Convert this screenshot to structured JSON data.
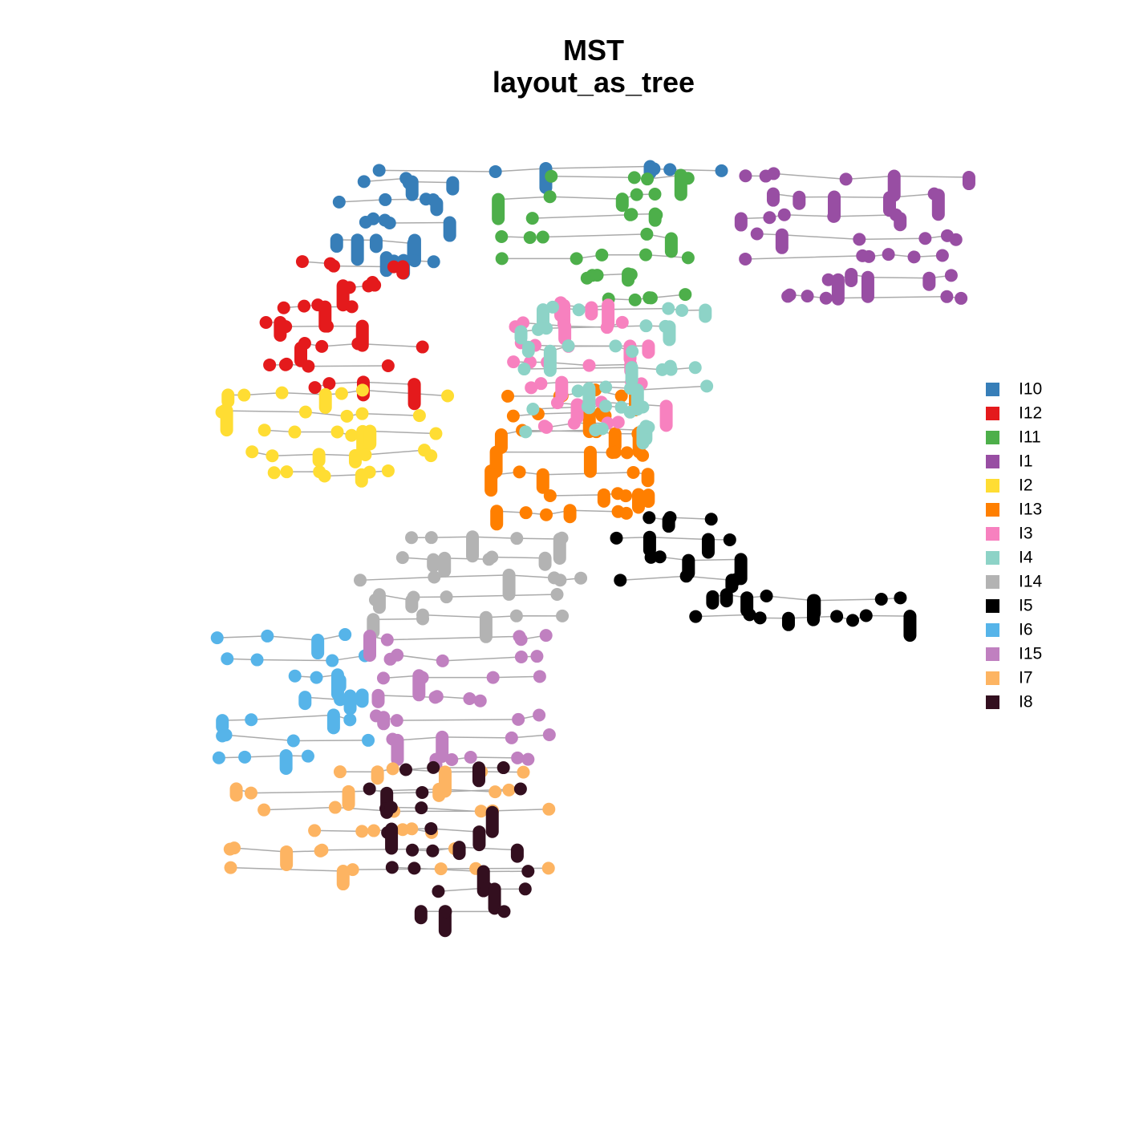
{
  "title": {
    "line1": "MST",
    "line2": "layout_as_tree"
  },
  "legend": [
    {
      "name": "I10",
      "color": "#377eb8"
    },
    {
      "name": "I12",
      "color": "#e41a1c"
    },
    {
      "name": "I11",
      "color": "#4daf4a"
    },
    {
      "name": "I1",
      "color": "#984ea3"
    },
    {
      "name": "I2",
      "color": "#ffdd33"
    },
    {
      "name": "I13",
      "color": "#ff7f00"
    },
    {
      "name": "I3",
      "color": "#f781bf"
    },
    {
      "name": "I4",
      "color": "#8dd3c7"
    },
    {
      "name": "I14",
      "color": "#b3b3b3"
    },
    {
      "name": "I5",
      "color": "#000000"
    },
    {
      "name": "I6",
      "color": "#56b4e9"
    },
    {
      "name": "I15",
      "color": "#c080c0"
    },
    {
      "name": "I7",
      "color": "#fdb462"
    },
    {
      "name": "I8",
      "color": "#330f1f"
    }
  ]
}
